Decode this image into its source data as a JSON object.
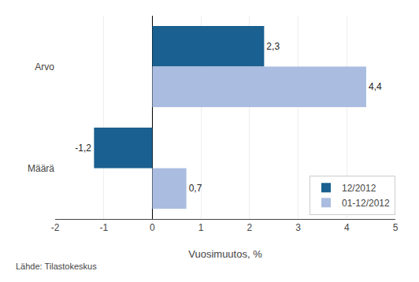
{
  "chart_data": {
    "type": "bar",
    "orientation": "horizontal",
    "categories": [
      "Arvo",
      "Määrä"
    ],
    "series": [
      {
        "name": "12/2012",
        "color": "#1a6090",
        "values": [
          2.3,
          -1.2
        ],
        "value_labels": [
          "2,3",
          "-1,2"
        ]
      },
      {
        "name": "01-12/2012",
        "color": "#aabde0",
        "values": [
          4.4,
          0.7
        ],
        "value_labels": [
          "4,4",
          "0,7"
        ]
      }
    ],
    "xlabel": "Vuosimuutos, %",
    "footnote": "Lähde: Tilastokeskus",
    "xlim": [
      -2,
      5
    ],
    "xticks": [
      -2,
      -1,
      0,
      1,
      2,
      3,
      4,
      5
    ],
    "grid": true,
    "legend": "lower right",
    "data_labels": true
  }
}
